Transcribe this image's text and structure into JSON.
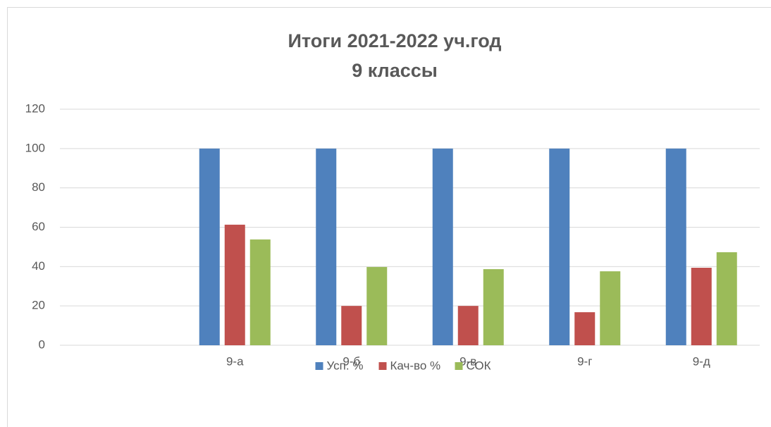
{
  "chart_data": {
    "type": "bar",
    "title": [
      "Итоги  2021-2022 уч.год",
      "9 классы"
    ],
    "categories": [
      null,
      "9-а",
      "9-б",
      "9-в",
      "9-г",
      "9-д"
    ],
    "series": [
      {
        "name": "Усп. %",
        "color": "#4f81bd",
        "values": [
          null,
          100,
          100,
          100,
          100,
          100
        ]
      },
      {
        "name": "Кач-во %",
        "color": "#c0504d",
        "values": [
          null,
          61.3,
          20,
          20,
          16.8,
          39.4
        ]
      },
      {
        "name": "СОК",
        "color": "#9bbb59",
        "values": [
          null,
          53.8,
          39.8,
          38.7,
          37.6,
          47.3
        ]
      }
    ],
    "ylim": [
      0,
      120
    ],
    "yticks": [
      0,
      20,
      40,
      60,
      80,
      100,
      120
    ],
    "grid": true,
    "legend": "bottom"
  }
}
